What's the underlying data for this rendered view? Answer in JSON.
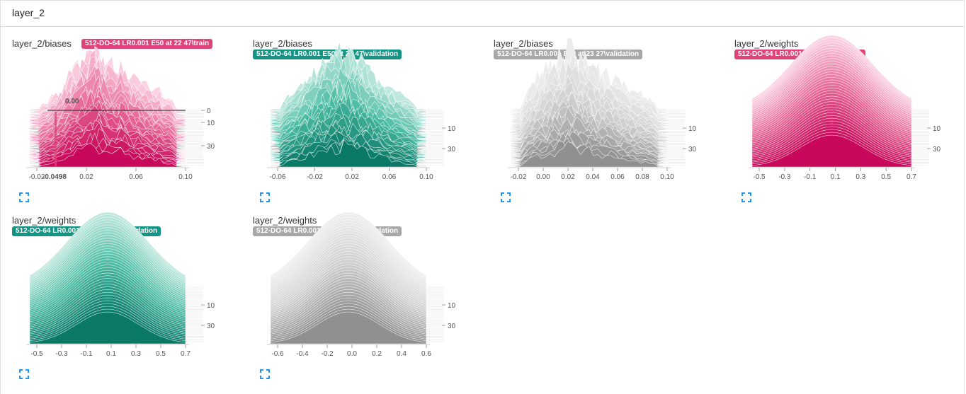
{
  "section": {
    "title": "layer_2"
  },
  "colors": {
    "train": "#e0427a",
    "validation": "#129584",
    "other": "#a8a8a8",
    "expand_icon": "#2196f3"
  },
  "cards": [
    {
      "title": "layer_2/biases",
      "run": "512-DO-64 LR0.001 E50 at 22 47\\train",
      "color_key": "train",
      "badge_inline": true,
      "kind": "bias",
      "shape": [
        0.05,
        0.08,
        0.1,
        0.14,
        0.22,
        0.3,
        0.4,
        0.55,
        0.62,
        0.7,
        0.84,
        0.9,
        0.98,
        1.0,
        0.82,
        0.72,
        0.62,
        0.78,
        0.6,
        0.5,
        0.56,
        0.38,
        0.4,
        0.3,
        0.34,
        0.18,
        0.22,
        0.12,
        0.08,
        0.05
      ],
      "x_ticks": [
        "-0.02",
        "0.02",
        "0.06",
        "0.10"
      ],
      "x_extra": "-0.0498",
      "y_ticks": [
        "0",
        "10",
        "30"
      ],
      "hover_value": "0.00",
      "icon": "fullscreen-icon"
    },
    {
      "title": "layer_2/biases",
      "run": "512-DO-64 LR0.001 E50 at 22 47\\validation",
      "color_key": "validation",
      "badge_inline": false,
      "kind": "bias",
      "shape": [
        0.05,
        0.1,
        0.14,
        0.2,
        0.28,
        0.36,
        0.45,
        0.55,
        0.62,
        0.7,
        0.78,
        0.85,
        0.92,
        0.96,
        1.0,
        0.9,
        0.82,
        0.76,
        0.66,
        0.58,
        0.48,
        0.42,
        0.36,
        0.3,
        0.26,
        0.2,
        0.16,
        0.12,
        0.09,
        0.05
      ],
      "x_ticks": [
        "-0.06",
        "-0.02",
        "0.02",
        "0.06",
        "0.10"
      ],
      "y_ticks": [
        "10",
        "30"
      ],
      "icon": "fullscreen-icon"
    },
    {
      "title": "layer_2/biases",
      "run": "512-DO-64 LR0.001 E50 at 23 27\\validation",
      "color_key": "other",
      "badge_inline": false,
      "kind": "bias",
      "shape": [
        0.05,
        0.1,
        0.2,
        0.32,
        0.45,
        0.55,
        0.62,
        0.7,
        0.8,
        0.86,
        0.92,
        1.0,
        0.9,
        0.84,
        0.78,
        0.72,
        0.66,
        0.6,
        0.56,
        0.5,
        0.44,
        0.4,
        0.34,
        0.3,
        0.26,
        0.22,
        0.18,
        0.14,
        0.1,
        0.06
      ],
      "x_ticks": [
        "-0.02",
        "0.00",
        "0.02",
        "0.04",
        "0.06",
        "0.08",
        "0.10"
      ],
      "y_ticks": [
        "10",
        "30"
      ],
      "icon": "fullscreen-icon"
    },
    {
      "title": "layer_2/weights",
      "run": "512-DO-64 LR0.001 E50 at 22 47\\train",
      "color_key": "train",
      "badge_inline": false,
      "kind": "weight",
      "x_ticks": [
        "-0.5",
        "-0.3",
        "-0.1",
        "0.1",
        "0.3",
        "0.5",
        "0.7"
      ],
      "y_ticks": [
        "10",
        "30"
      ],
      "icon": "fullscreen-icon"
    },
    {
      "title": "layer_2/weights",
      "run": "512-DO-64 LR0.001 E50 at 22 47\\validation",
      "color_key": "validation",
      "badge_inline": false,
      "kind": "weight",
      "x_ticks": [
        "-0.5",
        "-0.3",
        "-0.1",
        "0.1",
        "0.3",
        "0.5",
        "0.7"
      ],
      "y_ticks": [
        "10",
        "30"
      ],
      "icon": "fullscreen-icon"
    },
    {
      "title": "layer_2/weights",
      "run": "512-DO-64 LR0.001 E50 at 23 27\\validation",
      "color_key": "other",
      "badge_inline": false,
      "kind": "weight",
      "x_ticks": [
        "-0.6",
        "-0.4",
        "-0.2",
        "0.0",
        "0.2",
        "0.4",
        "0.6"
      ],
      "y_ticks": [
        "10",
        "30"
      ],
      "icon": "fullscreen-icon"
    }
  ]
}
